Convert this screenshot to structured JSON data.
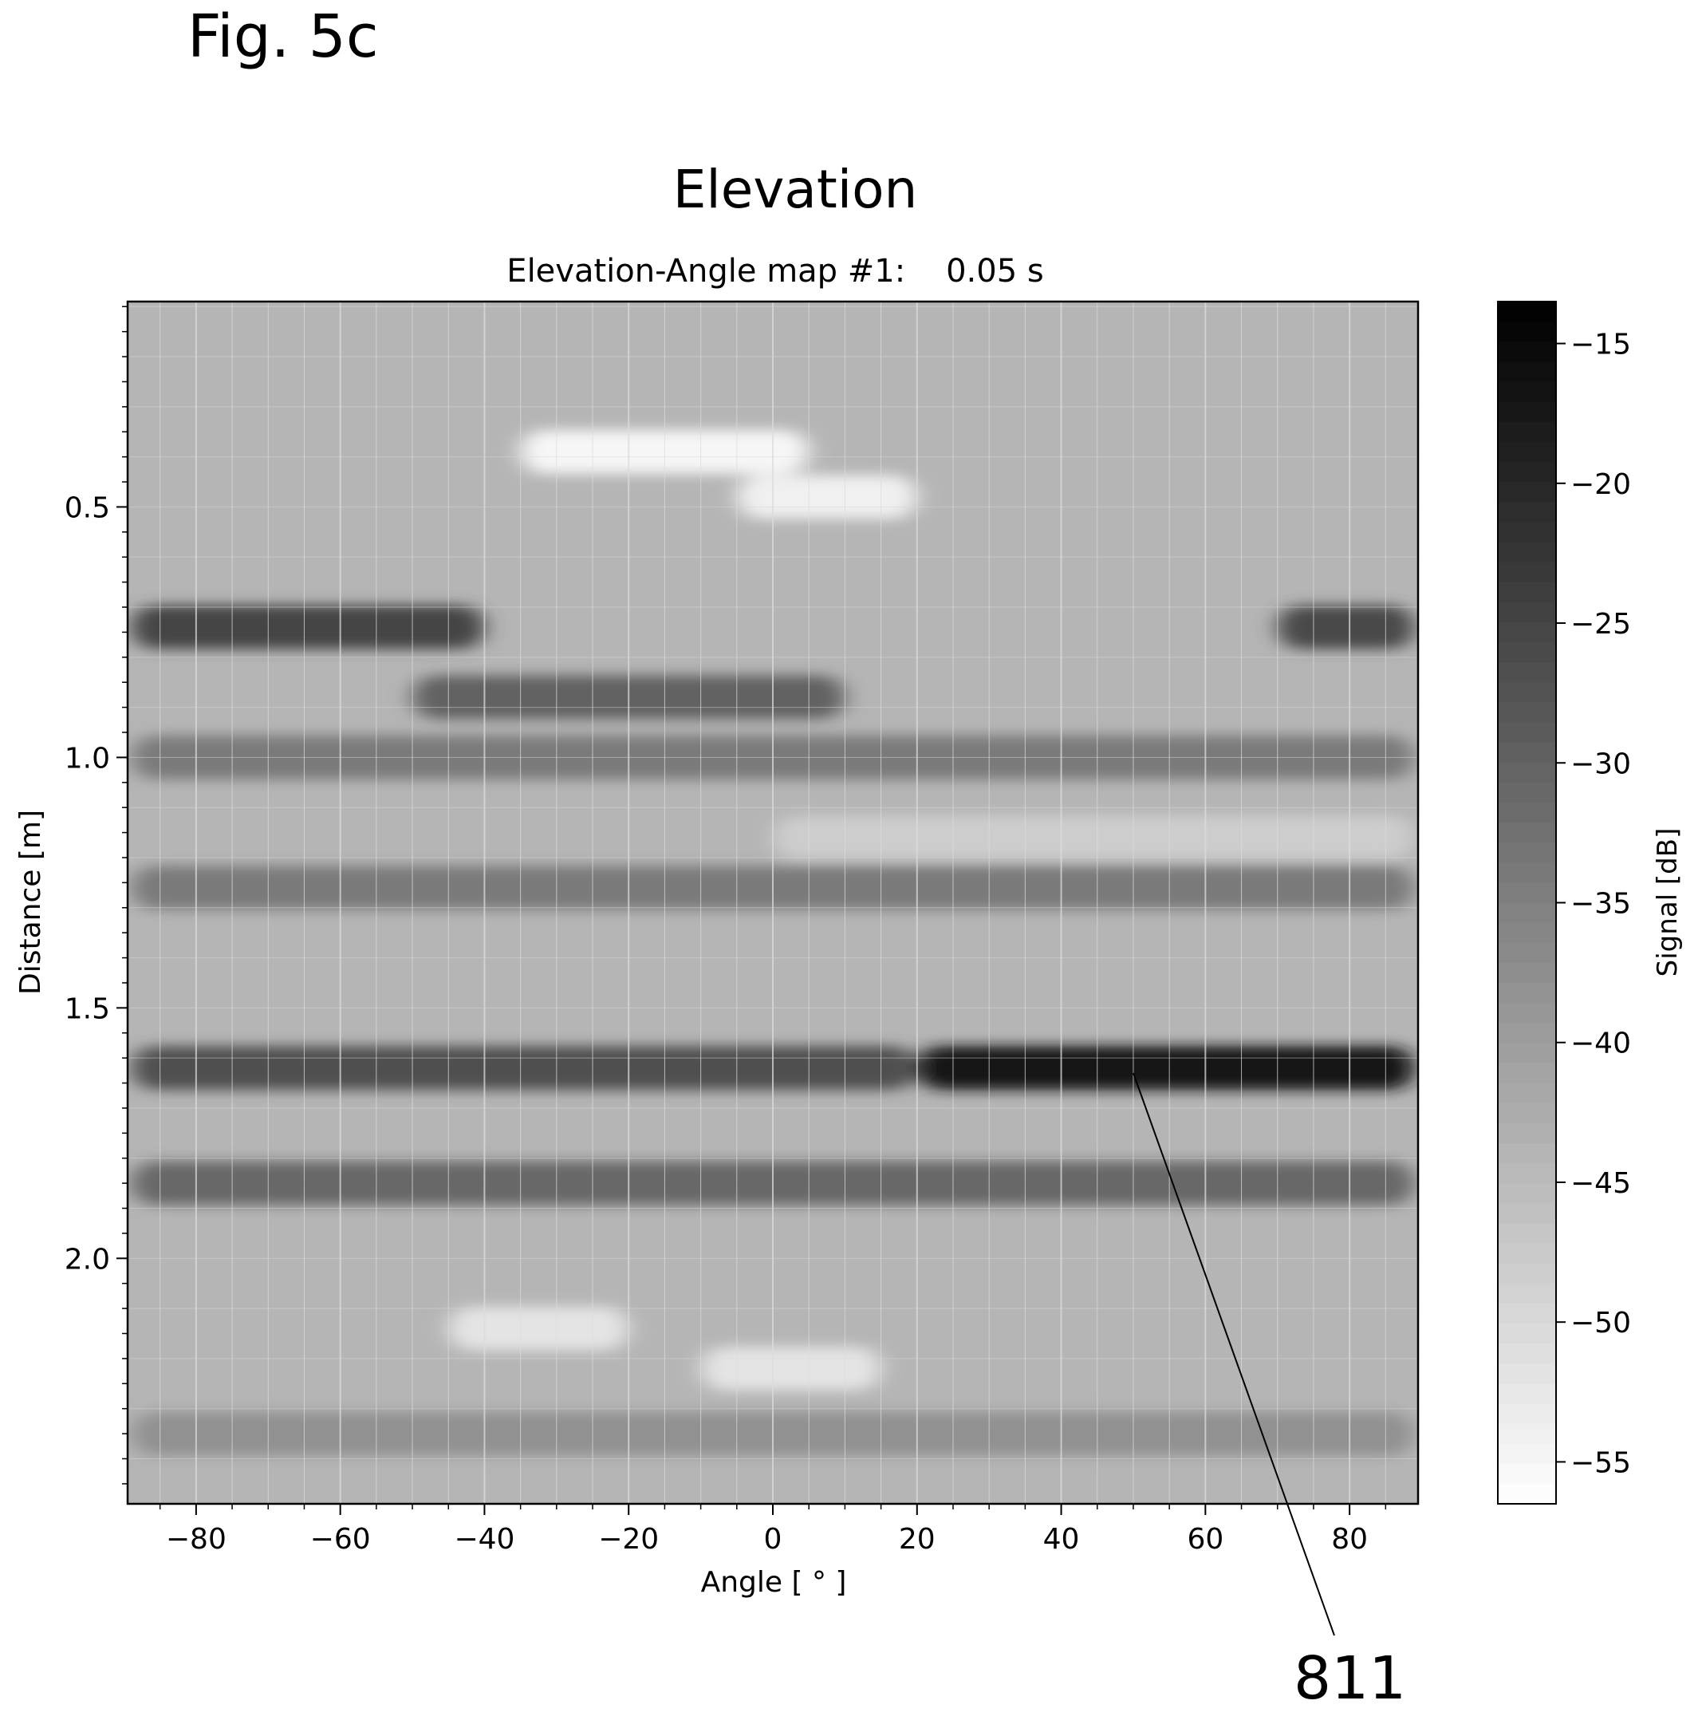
{
  "figure": {
    "label": "Fig. 5c",
    "callout": "811",
    "callout_target": {
      "x": 50,
      "y": 1.63
    }
  },
  "chart_data": {
    "type": "heatmap",
    "title": "Elevation",
    "subtitle": "Elevation-Angle map #1:    0.05 s",
    "xlabel": "Angle [ ° ]",
    "ylabel": "Distance [m]",
    "xlim": [
      -89.5,
      89.5
    ],
    "ylim": [
      2.49,
      0.09
    ],
    "xticks": [
      -80,
      -60,
      -40,
      -20,
      0,
      20,
      40,
      60,
      80
    ],
    "xtick_labels": [
      "−80",
      "−60",
      "−40",
      "−20",
      "0",
      "20",
      "40",
      "60",
      "80"
    ],
    "yticks": [
      0.5,
      1.0,
      1.5,
      2.0
    ],
    "ytick_labels": [
      "0.5",
      "1.0",
      "1.5",
      "2.0"
    ],
    "colorbar": {
      "label": "Signal [dB]",
      "range": [
        -56.5,
        -13.5
      ],
      "ticks": [
        -15,
        -20,
        -25,
        -30,
        -35,
        -40,
        -45,
        -50,
        -55
      ],
      "tick_labels": [
        "−15",
        "−20",
        "−25",
        "−30",
        "−35",
        "−40",
        "−45",
        "−50",
        "−55"
      ],
      "colormap": "gray_r"
    },
    "grid": true,
    "base_level_db": -44,
    "features": [
      {
        "distance": 0.39,
        "angle_from": -35,
        "angle_to": 5,
        "signal_db": -55
      },
      {
        "distance": 0.48,
        "angle_from": -5,
        "angle_to": 20,
        "signal_db": -54
      },
      {
        "distance": 0.74,
        "angle_from": -89,
        "angle_to": -40,
        "signal_db": -25
      },
      {
        "distance": 0.74,
        "angle_from": 70,
        "angle_to": 89,
        "signal_db": -26
      },
      {
        "distance": 0.88,
        "angle_from": -50,
        "angle_to": 10,
        "signal_db": -30
      },
      {
        "distance": 1.0,
        "angle_from": -89,
        "angle_to": 89,
        "signal_db": -34
      },
      {
        "distance": 1.16,
        "angle_from": 0,
        "angle_to": 89,
        "signal_db": -48
      },
      {
        "distance": 1.26,
        "angle_from": -89,
        "angle_to": 89,
        "signal_db": -34
      },
      {
        "distance": 1.62,
        "angle_from": -89,
        "angle_to": 20,
        "signal_db": -27
      },
      {
        "distance": 1.62,
        "angle_from": 20,
        "angle_to": 89,
        "signal_db": -17
      },
      {
        "distance": 1.85,
        "angle_from": -89,
        "angle_to": 89,
        "signal_db": -31
      },
      {
        "distance": 2.14,
        "angle_from": -45,
        "angle_to": -20,
        "signal_db": -52
      },
      {
        "distance": 2.22,
        "angle_from": -10,
        "angle_to": 15,
        "signal_db": -52
      },
      {
        "distance": 2.35,
        "angle_from": -89,
        "angle_to": 89,
        "signal_db": -38
      }
    ]
  }
}
